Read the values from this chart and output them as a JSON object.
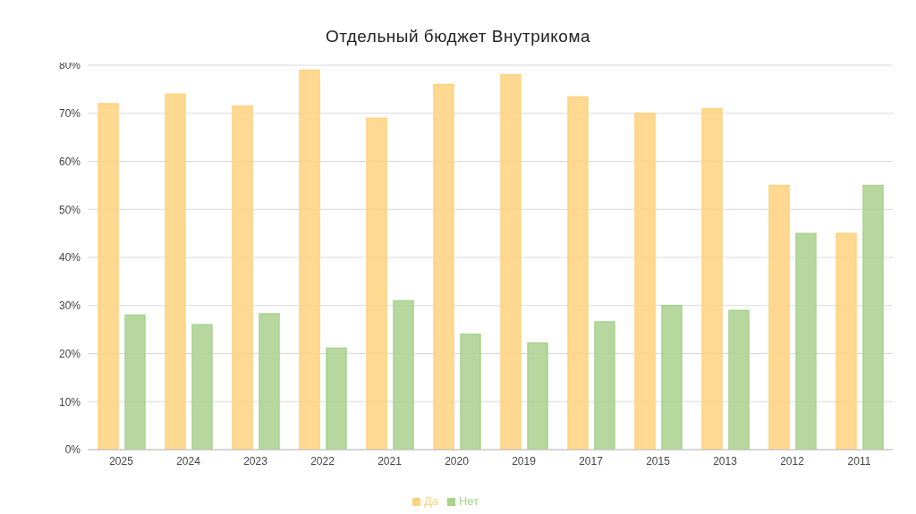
{
  "chart_data": {
    "type": "bar",
    "title": "Отдельный бюджет Внутрикома",
    "categories": [
      "2025",
      "2024",
      "2023",
      "2022",
      "2021",
      "2020",
      "2019",
      "2017",
      "2015",
      "2013",
      "2012",
      "2011"
    ],
    "series": [
      {
        "name": "Да",
        "color": "#ffd27f",
        "values": [
          72,
          74,
          71.5,
          79,
          69,
          76,
          78,
          73.4,
          70,
          71,
          55,
          45
        ]
      },
      {
        "name": "Нет",
        "color": "#a9d18e",
        "values": [
          28,
          26,
          28.3,
          21.1,
          31,
          24,
          22.2,
          26.6,
          30,
          29,
          45,
          55
        ]
      }
    ],
    "ylim": [
      0,
      80
    ],
    "yticks": [
      {
        "value": 0,
        "label": "0%"
      },
      {
        "value": 10,
        "label": "10%"
      },
      {
        "value": 20,
        "label": "20%"
      },
      {
        "value": 30,
        "label": "30%"
      },
      {
        "value": 40,
        "label": "40%"
      },
      {
        "value": 50,
        "label": "50%"
      },
      {
        "value": 60,
        "label": "60%"
      },
      {
        "value": 70,
        "label": "70%"
      },
      {
        "value": 80,
        "label": "80%"
      }
    ],
    "grid": "y",
    "legend": "bottom"
  }
}
